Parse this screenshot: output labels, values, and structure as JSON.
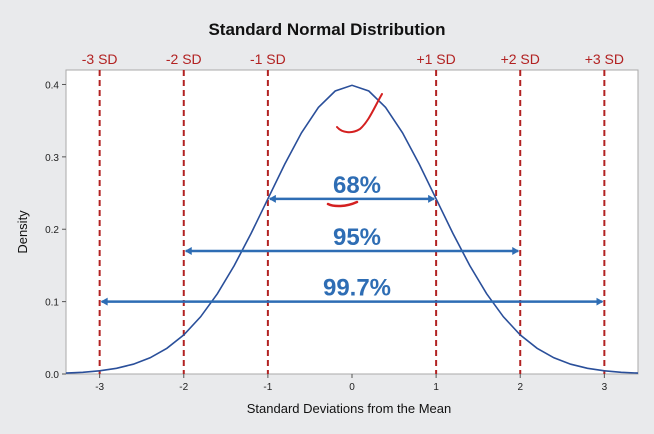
{
  "chart_data": {
    "type": "line",
    "title": "Standard Normal Distribution",
    "xlabel": "Standard Deviations from the Mean",
    "ylabel": "Density",
    "xlim": [
      -3.4,
      3.4
    ],
    "ylim": [
      0,
      0.42
    ],
    "x_ticks": [
      -3,
      -2,
      -1,
      0,
      1,
      2,
      3
    ],
    "y_ticks": [
      0.0,
      0.1,
      0.2,
      0.3,
      0.4
    ],
    "x_tick_labels": [
      "-3",
      "-2",
      "-1",
      "0",
      "1",
      "2",
      "3"
    ],
    "y_tick_labels": [
      "0.0",
      "0.1",
      "0.2",
      "0.3",
      "0.4"
    ],
    "grid": false,
    "series": [
      {
        "x": [
          -3.4,
          -3.2,
          -3.0,
          -2.8,
          -2.6,
          -2.4,
          -2.2,
          -2.0,
          -1.8,
          -1.6,
          -1.4,
          -1.2,
          -1.0,
          -0.8,
          -0.6,
          -0.4,
          -0.2,
          0.0,
          0.2,
          0.4,
          0.6,
          0.8,
          1.0,
          1.2,
          1.4,
          1.6,
          1.8,
          2.0,
          2.2,
          2.4,
          2.6,
          2.8,
          3.0,
          3.2,
          3.4
        ],
        "values": [
          0.0012,
          0.0024,
          0.0044,
          0.0079,
          0.0136,
          0.0224,
          0.0355,
          0.054,
          0.079,
          0.1109,
          0.1497,
          0.1942,
          0.242,
          0.2897,
          0.3332,
          0.3683,
          0.391,
          0.3989,
          0.391,
          0.3683,
          0.3332,
          0.2897,
          0.242,
          0.1942,
          0.1497,
          0.1109,
          0.079,
          0.054,
          0.0355,
          0.0224,
          0.0136,
          0.0079,
          0.0044,
          0.0024,
          0.0012
        ]
      }
    ],
    "sd_lines": [
      {
        "x": -3,
        "label": "-3 SD"
      },
      {
        "x": -2,
        "label": "-2 SD"
      },
      {
        "x": -1,
        "label": "-1 SD"
      },
      {
        "x": 1,
        "label": "+1 SD"
      },
      {
        "x": 2,
        "label": "+2 SD"
      },
      {
        "x": 3,
        "label": "+3 SD"
      }
    ],
    "ranges": [
      {
        "from": -1,
        "to": 1,
        "y": 0.242,
        "label": "68%"
      },
      {
        "from": -2,
        "to": 2,
        "y": 0.17,
        "label": "95%"
      },
      {
        "from": -3,
        "to": 3,
        "y": 0.1,
        "label": "99.7%"
      }
    ],
    "colors": {
      "curve": "#2a4f9a",
      "sd_line": "#b22222",
      "arrow": "#2e6db4",
      "annotation": "#d42020"
    }
  }
}
